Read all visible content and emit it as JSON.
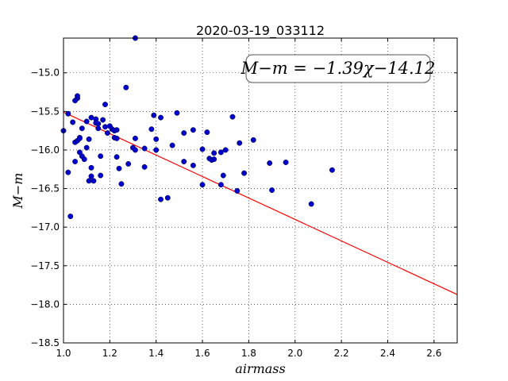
{
  "chart_data": {
    "type": "scatter",
    "title": "2020-03-19_033112",
    "xlabel": "airmass",
    "ylabel": "M−m",
    "xlim": [
      1.0,
      2.7
    ],
    "ylim": [
      -18.5,
      -14.55
    ],
    "xticks": [
      "1.0",
      "1.2",
      "1.4",
      "1.6",
      "1.8",
      "2.0",
      "2.2",
      "2.4",
      "2.6"
    ],
    "yticks": [
      "−15.0",
      "−15.5",
      "−16.0",
      "−16.5",
      "−17.0",
      "−17.5",
      "−18.0",
      "−18.5"
    ],
    "xtick_values": [
      1.0,
      1.2,
      1.4,
      1.6,
      1.8,
      2.0,
      2.2,
      2.4,
      2.6
    ],
    "ytick_values": [
      -15.0,
      -15.5,
      -16.0,
      -16.5,
      -17.0,
      -17.5,
      -18.0,
      -18.5
    ],
    "grid": true,
    "annotation": "M−m = −1.39χ−14.12",
    "fit": {
      "slope": -1.39,
      "intercept": -14.12,
      "color": "#ff0000"
    },
    "marker_color": "#0000cc",
    "points": [
      [
        1.0,
        -15.75
      ],
      [
        1.02,
        -15.53
      ],
      [
        1.02,
        -16.29
      ],
      [
        1.03,
        -16.86
      ],
      [
        1.04,
        -15.64
      ],
      [
        1.05,
        -15.36
      ],
      [
        1.05,
        -16.15
      ],
      [
        1.05,
        -15.9
      ],
      [
        1.06,
        -15.88
      ],
      [
        1.06,
        -15.33
      ],
      [
        1.06,
        -15.3
      ],
      [
        1.07,
        -15.84
      ],
      [
        1.07,
        -15.85
      ],
      [
        1.07,
        -16.03
      ],
      [
        1.08,
        -15.72
      ],
      [
        1.08,
        -16.08
      ],
      [
        1.09,
        -16.12
      ],
      [
        1.1,
        -15.97
      ],
      [
        1.1,
        -15.63
      ],
      [
        1.11,
        -15.86
      ],
      [
        1.11,
        -16.4
      ],
      [
        1.12,
        -16.23
      ],
      [
        1.12,
        -16.34
      ],
      [
        1.12,
        -15.58
      ],
      [
        1.13,
        -16.4
      ],
      [
        1.14,
        -15.6
      ],
      [
        1.14,
        -15.65
      ],
      [
        1.15,
        -15.66
      ],
      [
        1.15,
        -15.72
      ],
      [
        1.16,
        -16.08
      ],
      [
        1.16,
        -16.33
      ],
      [
        1.17,
        -15.61
      ],
      [
        1.18,
        -15.41
      ],
      [
        1.18,
        -15.7
      ],
      [
        1.19,
        -15.78
      ],
      [
        1.2,
        -15.69
      ],
      [
        1.21,
        -15.73
      ],
      [
        1.22,
        -15.75
      ],
      [
        1.22,
        -15.84
      ],
      [
        1.23,
        -15.74
      ],
      [
        1.23,
        -15.85
      ],
      [
        1.23,
        -16.09
      ],
      [
        1.24,
        -16.24
      ],
      [
        1.25,
        -16.44
      ],
      [
        1.27,
        -15.19
      ],
      [
        1.28,
        -16.18
      ],
      [
        1.3,
        -15.97
      ],
      [
        1.31,
        -16.0
      ],
      [
        1.31,
        -15.85
      ],
      [
        1.31,
        -14.55
      ],
      [
        1.35,
        -16.22
      ],
      [
        1.35,
        -15.98
      ],
      [
        1.38,
        -15.73
      ],
      [
        1.39,
        -15.55
      ],
      [
        1.4,
        -15.86
      ],
      [
        1.4,
        -16.0
      ],
      [
        1.42,
        -15.58
      ],
      [
        1.42,
        -16.64
      ],
      [
        1.45,
        -16.62
      ],
      [
        1.47,
        -15.94
      ],
      [
        1.49,
        -15.52
      ],
      [
        1.52,
        -16.15
      ],
      [
        1.52,
        -15.78
      ],
      [
        1.56,
        -16.2
      ],
      [
        1.56,
        -15.74
      ],
      [
        1.6,
        -16.45
      ],
      [
        1.6,
        -15.99
      ],
      [
        1.62,
        -15.77
      ],
      [
        1.63,
        -16.11
      ],
      [
        1.64,
        -16.13
      ],
      [
        1.65,
        -16.04
      ],
      [
        1.65,
        -16.12
      ],
      [
        1.68,
        -16.45
      ],
      [
        1.68,
        -16.03
      ],
      [
        1.69,
        -16.33
      ],
      [
        1.7,
        -16.0
      ],
      [
        1.73,
        -15.57
      ],
      [
        1.75,
        -16.53
      ],
      [
        1.76,
        -15.91
      ],
      [
        1.78,
        -16.3
      ],
      [
        1.82,
        -15.87
      ],
      [
        1.89,
        -16.17
      ],
      [
        1.9,
        -16.52
      ],
      [
        1.96,
        -16.16
      ],
      [
        2.07,
        -16.7
      ],
      [
        2.16,
        -16.26
      ]
    ]
  }
}
